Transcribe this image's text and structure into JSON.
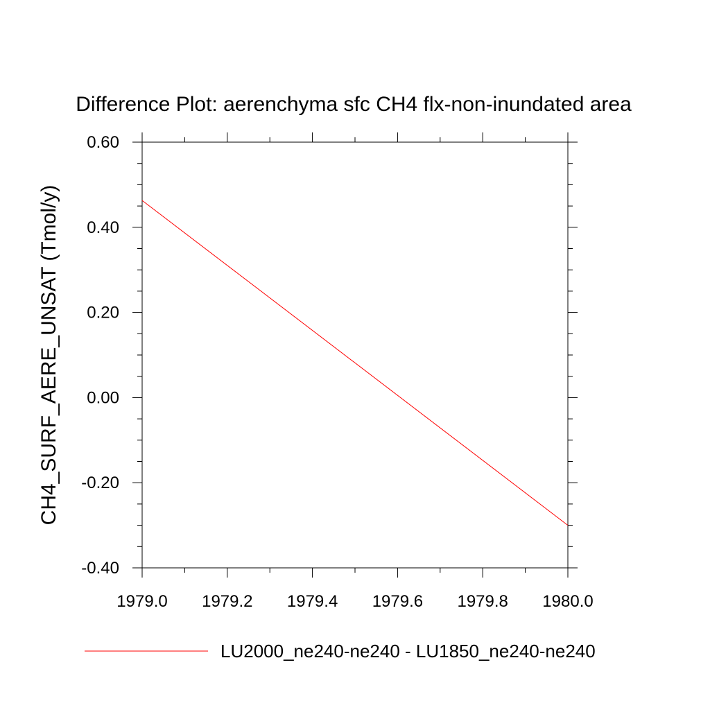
{
  "chart_data": {
    "type": "line",
    "title": "Difference Plot: aerenchyma sfc CH4 flx-non-inundated area",
    "xlabel": "",
    "ylabel": "CH4_SURF_AERE_UNSAT  (Tmol/y)",
    "xlim": [
      1979.0,
      1980.0
    ],
    "ylim": [
      -0.4,
      0.6
    ],
    "x_tick_labels": [
      "1979.0",
      "1979.2",
      "1979.4",
      "1979.6",
      "1979.8",
      "1980.0"
    ],
    "y_tick_labels": [
      "-0.40",
      "-0.20",
      "0.00",
      "0.20",
      "0.40",
      "0.60"
    ],
    "grid": false,
    "legend_position": "bottom",
    "series": [
      {
        "name": "LU2000_ne240-ne240 - LU1850_ne240-ne240",
        "color": "#ff0000",
        "x": [
          1979.0,
          1980.0
        ],
        "y": [
          0.463,
          -0.3
        ]
      }
    ]
  }
}
